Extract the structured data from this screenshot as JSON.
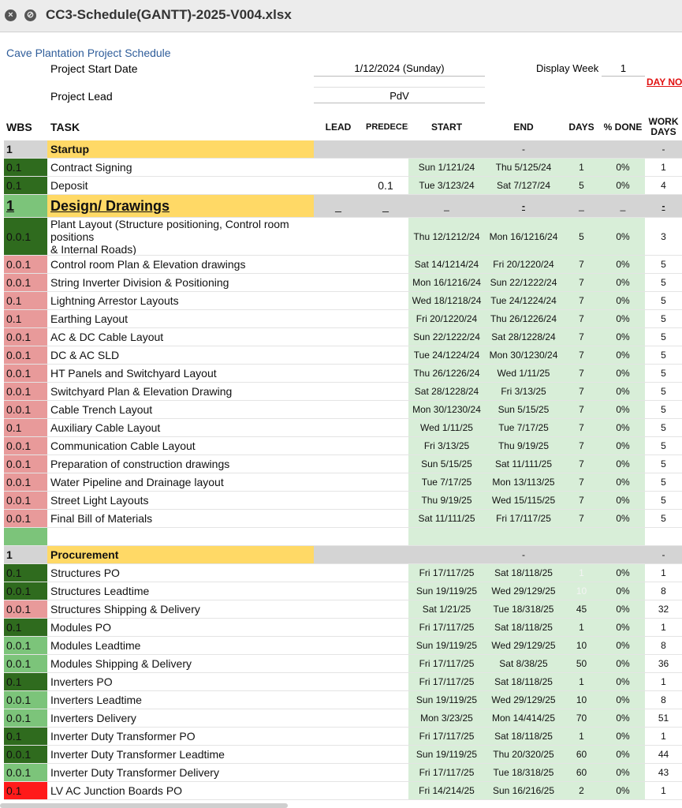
{
  "window": {
    "title": "CC3-Schedule(GANTT)-2025-V004.xlsx"
  },
  "sheet": {
    "heading": "Cave Plantation Project Schedule",
    "start_label": "Project Start Date",
    "start_value": "1/12/2024 (Sunday)",
    "week_label": "Display Week",
    "week_value": "1",
    "day_no": "DAY NO.",
    "lead_label": "Project Lead",
    "lead_value": "PdV",
    "columns": [
      "WBS",
      "TASK",
      "LEAD",
      "PREDECESSOR",
      "START",
      "END",
      "DAYS",
      "% DONE",
      "WORK DAYS"
    ],
    "rows": [
      {
        "kind": "section",
        "wbs": "1",
        "task": "Startup",
        "lead": "",
        "pred": "",
        "start": "",
        "end": "-",
        "days": "",
        "done": "",
        "work": "-",
        "color": "#d4d4d4"
      },
      {
        "kind": "task",
        "wbs": "0.1",
        "task": "Contract Signing",
        "lead": "",
        "pred": "",
        "start": "Sun 1/121/24",
        "end": "Thu 5/125/24",
        "days": "1",
        "done": "0%",
        "work": "1",
        "color": "#2f6b1e"
      },
      {
        "kind": "task",
        "wbs": "0.1",
        "task": "Deposit",
        "lead": "",
        "pred": "0.1",
        "start": "Tue 3/123/24",
        "end": "Sat 7/127/24",
        "days": "5",
        "done": "0%",
        "work": "4",
        "color": "#2f6b1e"
      },
      {
        "kind": "major",
        "wbs": "1",
        "task": "Design/ Drawings",
        "lead": "_",
        "pred": "_",
        "start": "_",
        "end": "-",
        "days": "_",
        "done": "_",
        "work": "-",
        "color": "#7cc47a"
      },
      {
        "kind": "task",
        "wbs": "0.0.1",
        "task": "Plant Layout (Structure positioning, Control room positions\n& Internal Roads)",
        "lead": "",
        "pred": "",
        "start": "Thu 12/1212/24",
        "end": "Mon 16/1216/24",
        "days": "5",
        "done": "0%",
        "work": "3",
        "color": "#2f6b1e"
      },
      {
        "kind": "task",
        "wbs": "0.0.1",
        "task": "Control room Plan & Elevation drawings",
        "lead": "",
        "pred": "",
        "start": "Sat 14/1214/24",
        "end": "Fri 20/1220/24",
        "days": "7",
        "done": "0%",
        "work": "5",
        "color": "#e89a9a"
      },
      {
        "kind": "task",
        "wbs": "0.0.1",
        "task": "String Inverter Division & Positioning",
        "lead": "",
        "pred": "",
        "start": "Mon 16/1216/24",
        "end": "Sun 22/1222/24",
        "days": "7",
        "done": "0%",
        "work": "5",
        "color": "#e89a9a"
      },
      {
        "kind": "task",
        "wbs": "0.1",
        "task": "Lightning Arrestor Layouts",
        "lead": "",
        "pred": "",
        "start": "Wed 18/1218/24",
        "end": "Tue 24/1224/24",
        "days": "7",
        "done": "0%",
        "work": "5",
        "color": "#e89a9a"
      },
      {
        "kind": "task",
        "wbs": "0.1",
        "task": "Earthing Layout",
        "lead": "",
        "pred": "",
        "start": "Fri 20/1220/24",
        "end": "Thu 26/1226/24",
        "days": "7",
        "done": "0%",
        "work": "5",
        "color": "#e89a9a"
      },
      {
        "kind": "task",
        "wbs": "0.0.1",
        "task": "AC & DC Cable Layout",
        "lead": "",
        "pred": "",
        "start": "Sun 22/1222/24",
        "end": "Sat 28/1228/24",
        "days": "7",
        "done": "0%",
        "work": "5",
        "color": "#e89a9a"
      },
      {
        "kind": "task",
        "wbs": "0.0.1",
        "task": "DC & AC SLD",
        "lead": "",
        "pred": "",
        "start": "Tue 24/1224/24",
        "end": "Mon 30/1230/24",
        "days": "7",
        "done": "0%",
        "work": "5",
        "color": "#e89a9a"
      },
      {
        "kind": "task",
        "wbs": "0.0.1",
        "task": "HT Panels and Switchyard Layout",
        "lead": "",
        "pred": "",
        "start": "Thu 26/1226/24",
        "end": "Wed 1/11/25",
        "days": "7",
        "done": "0%",
        "work": "5",
        "color": "#e89a9a"
      },
      {
        "kind": "task",
        "wbs": "0.0.1",
        "task": "Switchyard Plan & Elevation Drawing",
        "lead": "",
        "pred": "",
        "start": "Sat 28/1228/24",
        "end": "Fri 3/13/25",
        "days": "7",
        "done": "0%",
        "work": "5",
        "color": "#e89a9a"
      },
      {
        "kind": "task",
        "wbs": "0.0.1",
        "task": "Cable Trench Layout",
        "lead": "",
        "pred": "",
        "start": "Mon 30/1230/24",
        "end": "Sun 5/15/25",
        "days": "7",
        "done": "0%",
        "work": "5",
        "color": "#e89a9a"
      },
      {
        "kind": "task",
        "wbs": "0.1",
        "task": "Auxiliary Cable Layout",
        "lead": "",
        "pred": "",
        "start": "Wed 1/11/25",
        "end": "Tue 7/17/25",
        "days": "7",
        "done": "0%",
        "work": "5",
        "color": "#e89a9a"
      },
      {
        "kind": "task",
        "wbs": "0.0.1",
        "task": "Communication Cable Layout",
        "lead": "",
        "pred": "",
        "start": "Fri 3/13/25",
        "end": "Thu 9/19/25",
        "days": "7",
        "done": "0%",
        "work": "5",
        "color": "#e89a9a"
      },
      {
        "kind": "task",
        "wbs": "0.0.1",
        "task": "Preparation of construction drawings",
        "lead": "",
        "pred": "",
        "start": "Sun 5/15/25",
        "end": "Sat 11/111/25",
        "days": "7",
        "done": "0%",
        "work": "5",
        "color": "#e89a9a"
      },
      {
        "kind": "task",
        "wbs": "0.0.1",
        "task": "Water Pipeline and Drainage layout",
        "lead": "",
        "pred": "",
        "start": "Tue 7/17/25",
        "end": "Mon 13/113/25",
        "days": "7",
        "done": "0%",
        "work": "5",
        "color": "#e89a9a"
      },
      {
        "kind": "task",
        "wbs": "0.0.1",
        "task": "Street Light Layouts",
        "lead": "",
        "pred": "",
        "start": "Thu 9/19/25",
        "end": "Wed 15/115/25",
        "days": "7",
        "done": "0%",
        "work": "5",
        "color": "#e89a9a"
      },
      {
        "kind": "task",
        "wbs": "0.0.1",
        "task": "Final Bill of Materials",
        "lead": "",
        "pred": "",
        "start": "Sat 11/111/25",
        "end": "Fri 17/117/25",
        "days": "7",
        "done": "0%",
        "work": "5",
        "color": "#e89a9a"
      },
      {
        "kind": "blank",
        "wbs": "",
        "task": "",
        "lead": "",
        "pred": "",
        "start": "",
        "end": "",
        "days": "",
        "done": "",
        "work": "",
        "color": "#7cc47a"
      },
      {
        "kind": "section",
        "wbs": "1",
        "task": "Procurement",
        "lead": "",
        "pred": "",
        "start": "",
        "end": "-",
        "days": "",
        "done": "",
        "work": "-",
        "color": "#d4d4d4"
      },
      {
        "kind": "task",
        "wbs": "0.1",
        "task": "Structures PO",
        "lead": "",
        "pred": "",
        "start": "Fri 17/117/25",
        "end": "Sat 18/118/25",
        "days": "1",
        "done": "0%",
        "work": "1",
        "color": "#2f6b1e"
      },
      {
        "kind": "task",
        "wbs": "0.0.1",
        "task": "Structures Leadtime",
        "lead": "",
        "pred": "",
        "start": "Sun 19/119/25",
        "end": "Wed 29/129/25",
        "days": "10",
        "done": "0%",
        "work": "8",
        "color": "#2f6b1e"
      },
      {
        "kind": "task",
        "wbs": "0.0.1",
        "task": "Structures Shipping & Delivery",
        "lead": "",
        "pred": "",
        "start": "Sat 1/21/25",
        "end": "Tue 18/318/25",
        "days": "45",
        "done": "0%",
        "work": "32",
        "color": "#e89a9a"
      },
      {
        "kind": "task",
        "wbs": "0.1",
        "task": "Modules PO",
        "lead": "",
        "pred": "",
        "start": "Fri 17/117/25",
        "end": "Sat 18/118/25",
        "days": "1",
        "done": "0%",
        "work": "1",
        "color": "#2f6b1e"
      },
      {
        "kind": "task",
        "wbs": "0.0.1",
        "task": "Modules Leadtime",
        "lead": "",
        "pred": "",
        "start": "Sun 19/119/25",
        "end": "Wed 29/129/25",
        "days": "10",
        "done": "0%",
        "work": "8",
        "color": "#7cc47a"
      },
      {
        "kind": "task",
        "wbs": "0.0.1",
        "task": "Modules Shipping & Delivery",
        "lead": "",
        "pred": "",
        "start": "Fri 17/117/25",
        "end": "Sat 8/38/25",
        "days": "50",
        "done": "0%",
        "work": "36",
        "color": "#7cc47a"
      },
      {
        "kind": "task",
        "wbs": "0.1",
        "task": "Inverters PO",
        "lead": "",
        "pred": "",
        "start": "Fri 17/117/25",
        "end": "Sat 18/118/25",
        "days": "1",
        "done": "0%",
        "work": "1",
        "color": "#2f6b1e"
      },
      {
        "kind": "task",
        "wbs": "0.0.1",
        "task": "Inverters Leadtime",
        "lead": "",
        "pred": "",
        "start": "Sun 19/119/25",
        "end": "Wed 29/129/25",
        "days": "10",
        "done": "0%",
        "work": "8",
        "color": "#7cc47a"
      },
      {
        "kind": "task",
        "wbs": "0.0.1",
        "task": "Inverters Delivery",
        "lead": "",
        "pred": "",
        "start": "Mon 3/23/25",
        "end": "Mon 14/414/25",
        "days": "70",
        "done": "0%",
        "work": "51",
        "color": "#7cc47a"
      },
      {
        "kind": "task",
        "wbs": "0.1",
        "task": "Inverter Duty Transformer PO",
        "lead": "",
        "pred": "",
        "start": "Fri 17/117/25",
        "end": "Sat 18/118/25",
        "days": "1",
        "done": "0%",
        "work": "1",
        "color": "#2f6b1e"
      },
      {
        "kind": "task",
        "wbs": "0.0.1",
        "task": "Inverter Duty Transformer Leadtime",
        "lead": "",
        "pred": "",
        "start": "Sun 19/119/25",
        "end": "Thu 20/320/25",
        "days": "60",
        "done": "0%",
        "work": "44",
        "color": "#2f6b1e"
      },
      {
        "kind": "task",
        "wbs": "0.0.1",
        "task": "Inverter Duty Transformer Delivery",
        "lead": "",
        "pred": "",
        "start": "Fri 17/117/25",
        "end": "Tue 18/318/25",
        "days": "60",
        "done": "0%",
        "work": "43",
        "color": "#7cc47a"
      },
      {
        "kind": "task",
        "wbs": "0.1",
        "task": "LV AC Junction Boards PO",
        "lead": "",
        "pred": "",
        "start": "Fri 14/214/25",
        "end": "Sun 16/216/25",
        "days": "2",
        "done": "0%",
        "work": "1",
        "color": "#ff1a1a"
      }
    ]
  }
}
